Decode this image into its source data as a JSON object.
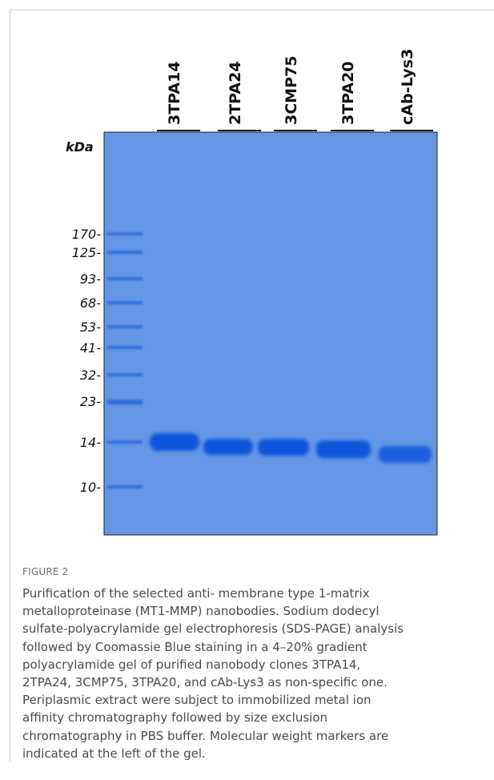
{
  "figure": {
    "lanes": [
      "3TPA14",
      "2TPA24",
      "3CMP75",
      "3TPA20",
      "cAb-Lys3"
    ],
    "unit": "kDa",
    "markers": [
      "170-",
      "125-",
      "93-",
      "68-",
      "53-",
      "41-",
      "32-",
      "23-",
      "14-",
      "10-"
    ],
    "label": "FIGURE 2",
    "caption_lines": [
      "Purification of the selected anti- membrane type 1-matrix",
      "metalloproteinase (MT1-MMP) nanobodies. Sodium dodecyl",
      "sulfate-polyacrylamide gel electrophoresis (SDS-PAGE) analysis",
      "followed by Coomassie Blue staining in a 4–20% gradient",
      "polyacrylamide gel of purified nanobody clones 3TPA14,",
      "2TPA24, 3CMP75, 3TPA20, and cAb-Lys3 as non-specific one.",
      "Periplasmic extract were subject to immobilized metal ion",
      "affinity chromatography followed by size exclusion",
      "chromatography in PBS buffer. Molecular weight markers are",
      "indicated at the left of the gel."
    ]
  }
}
